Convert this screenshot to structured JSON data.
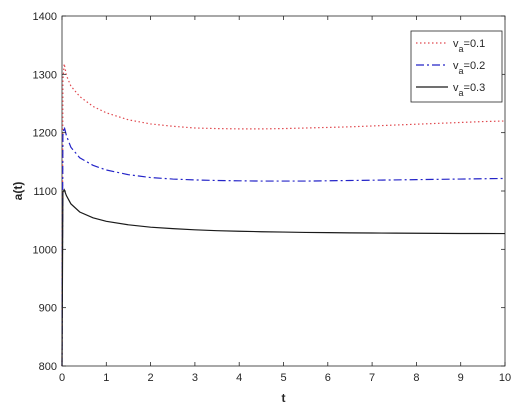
{
  "chart_data": {
    "type": "line",
    "xlabel": "t",
    "ylabel": "a(t)",
    "xlim": [
      0,
      10
    ],
    "ylim": [
      800,
      1400
    ],
    "xticks": [
      "0",
      "1",
      "2",
      "3",
      "4",
      "5",
      "6",
      "7",
      "8",
      "9",
      "10"
    ],
    "yticks": [
      "800",
      "900",
      "1000",
      "1100",
      "1200",
      "1300",
      "1400"
    ],
    "grid": false,
    "legend_position": "top-right",
    "series": [
      {
        "name": "v_a=0.1",
        "legend_main": "v",
        "legend_sub": "a",
        "legend_value": "=0.1",
        "color": "#e0484e",
        "dash": "dotted",
        "x": [
          0,
          0.02,
          0.05,
          0.1,
          0.2,
          0.4,
          0.7,
          1,
          1.5,
          2,
          2.5,
          3,
          3.5,
          4,
          4.5,
          5,
          5.5,
          6,
          6.5,
          7,
          7.5,
          8,
          8.5,
          9,
          9.5,
          10
        ],
        "y": [
          800,
          1290,
          1318,
          1298,
          1280,
          1262,
          1245,
          1234,
          1222,
          1215,
          1211,
          1208,
          1207,
          1206.5,
          1206.5,
          1207,
          1208,
          1209,
          1210,
          1211.5,
          1213,
          1214.5,
          1216,
          1217.5,
          1219,
          1220
        ]
      },
      {
        "name": "v_a=0.2",
        "legend_main": "v",
        "legend_sub": "a",
        "legend_value": "=0.2",
        "color": "#2424c8",
        "dash": "dashdot",
        "x": [
          0,
          0.02,
          0.05,
          0.1,
          0.2,
          0.4,
          0.7,
          1,
          1.5,
          2,
          2.5,
          3,
          3.5,
          4,
          4.5,
          5,
          5.5,
          6,
          6.5,
          7,
          7.5,
          8,
          8.5,
          9,
          9.5,
          10
        ],
        "y": [
          800,
          1195,
          1210,
          1195,
          1175,
          1157,
          1144,
          1136,
          1128,
          1123,
          1120.5,
          1119,
          1118,
          1117.5,
          1117,
          1117,
          1117,
          1117.5,
          1118,
          1118.5,
          1119,
          1119.5,
          1120,
          1120.5,
          1121,
          1121.5
        ]
      },
      {
        "name": "v_a=0.3",
        "legend_main": "v",
        "legend_sub": "a",
        "legend_value": "=0.3",
        "color": "#1a1a1a",
        "dash": "solid",
        "x": [
          0,
          0.02,
          0.05,
          0.1,
          0.2,
          0.4,
          0.7,
          1,
          1.5,
          2,
          2.5,
          3,
          3.5,
          4,
          4.5,
          5,
          5.5,
          6,
          6.5,
          7,
          7.5,
          8,
          8.5,
          9,
          9.5,
          10
        ],
        "y": [
          800,
          1098,
          1102,
          1092,
          1078,
          1064,
          1054,
          1048,
          1042,
          1038,
          1035.5,
          1033.5,
          1032,
          1031,
          1030.2,
          1029.6,
          1029,
          1028.6,
          1028.2,
          1028,
          1027.8,
          1027.6,
          1027.4,
          1027.2,
          1027.1,
          1027
        ]
      }
    ]
  }
}
